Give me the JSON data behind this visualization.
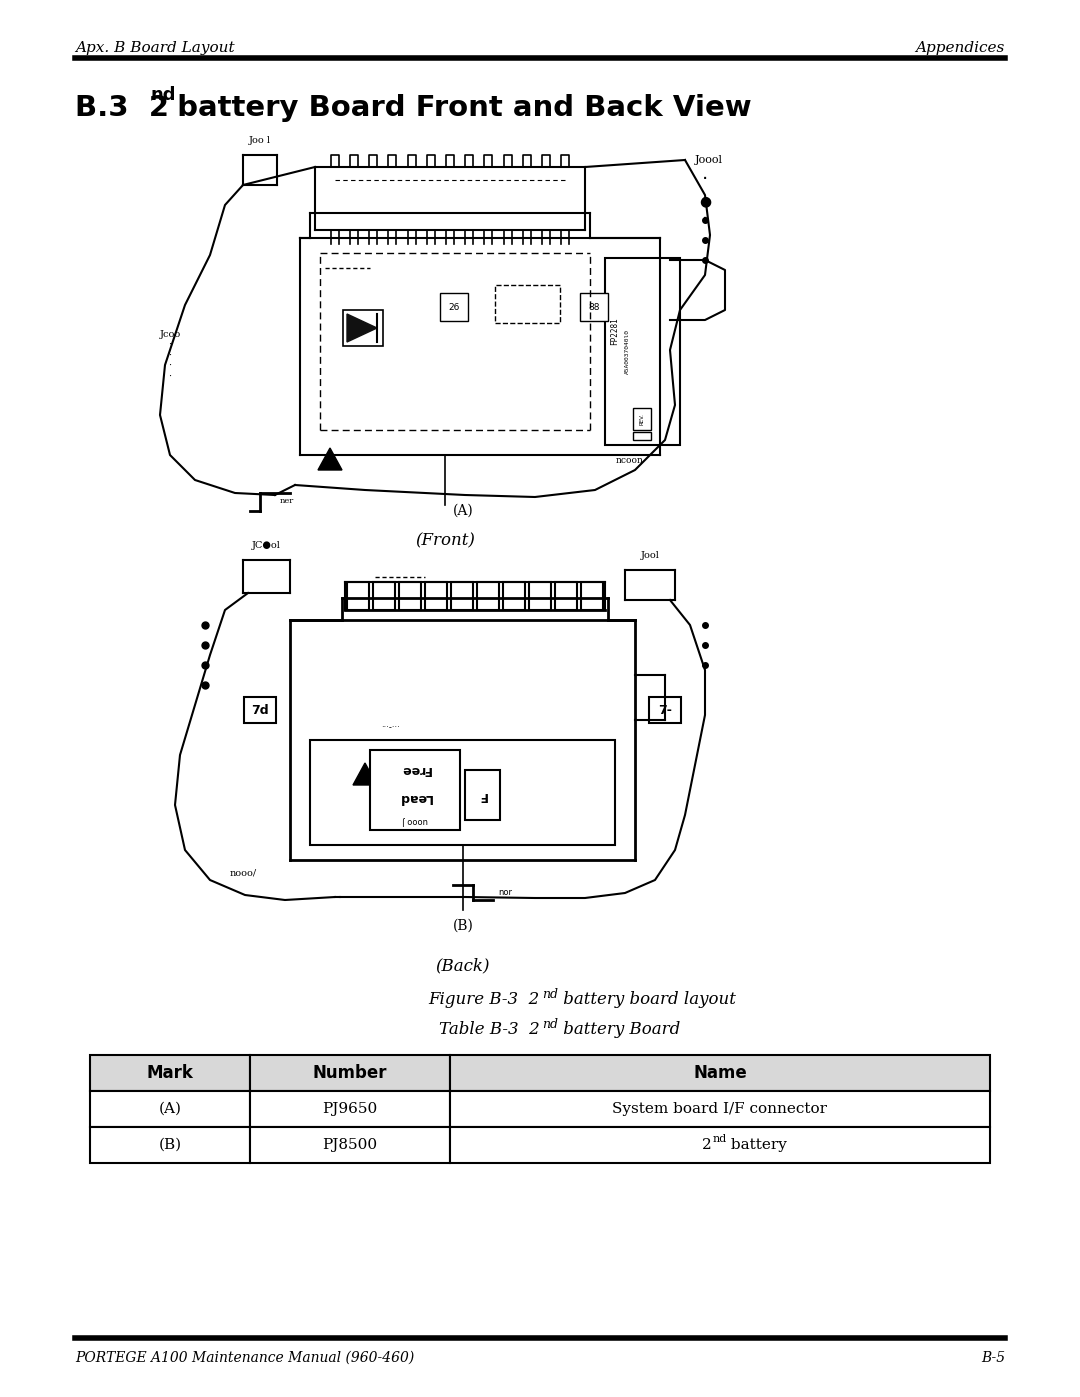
{
  "page_title_left": "Apx. B Board Layout",
  "page_title_right": "Appendices",
  "section_title_b3": "B.3  2",
  "section_title_sup": "nd",
  "section_title_rest": " battery Board Front and Back View",
  "front_label": "(Front)",
  "back_label": "(Back)",
  "front_marker": "(A)",
  "back_marker": "(B)",
  "figure_caption_pre": "Figure B-3  2",
  "figure_caption_sup": "nd",
  "figure_caption_post": " battery board layout",
  "table_caption_pre": "Table B-3  2",
  "table_caption_sup": "nd",
  "table_caption_post": " battery Board",
  "table_headers": [
    "Mark",
    "Number",
    "Name"
  ],
  "table_rows": [
    [
      "(A)",
      "PJ9650",
      "System board I/F connector"
    ],
    [
      "(B)",
      "PJ8500",
      "2nd battery"
    ]
  ],
  "footer_left": "PORTEGE A100 Maintenance Manual (960-460)",
  "footer_right": "B-5",
  "bg_color": "#ffffff",
  "text_color": "#000000",
  "line_color": "#000000"
}
